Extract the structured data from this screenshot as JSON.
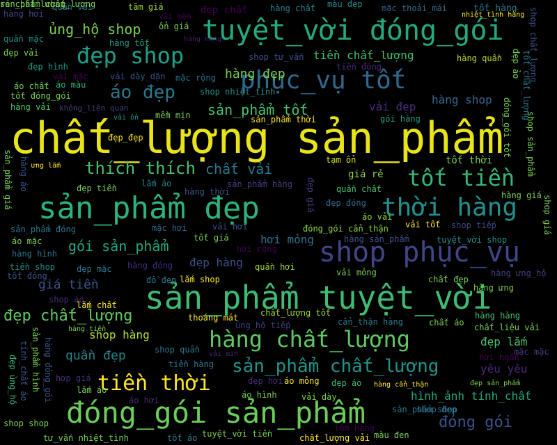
{
  "words": [
    {
      "text": "chất_lượng sản_phẩm",
      "color": "#e8e419"
    },
    {
      "text": "sản_phẩm tuyệt_vời",
      "color": "#3ebc73"
    },
    {
      "text": "đóng_gói sản_phẩm",
      "color": "#6ccd5a"
    },
    {
      "text": "sản_phẩm đẹp",
      "color": "#2db27d"
    },
    {
      "text": "tuyệt_vời đóng_gói",
      "color": "#24aa83"
    },
    {
      "text": "shop phục_vụ",
      "color": "#414487"
    },
    {
      "text": "phục_vụ tốt",
      "color": "#31688e"
    },
    {
      "text": "thời hàng",
      "color": "#21918c"
    },
    {
      "text": "hàng chất_lượng",
      "color": "#5ec962"
    },
    {
      "text": "đẹp shop",
      "color": "#1f9e89"
    },
    {
      "text": "tốt tiền",
      "color": "#35b779"
    },
    {
      "text": "tiền thời",
      "color": "#fde725"
    },
    {
      "text": "sản_phẩm chất_lượng",
      "color": "#1f958b"
    },
    {
      "text": "áo đẹp",
      "color": "#2a788e"
    },
    {
      "text": "thích thích",
      "color": "#48c16e"
    },
    {
      "text": "gói sản_phẩm",
      "color": "#22a884"
    },
    {
      "text": "đẹp chất_lượng",
      "color": "#5ec962"
    },
    {
      "text": "đóng gói",
      "color": "#3b528b"
    },
    {
      "text": "ủng_hộ shop",
      "color": "#7ad151"
    },
    {
      "text": "sản_phẩm tốt",
      "color": "#48c16e"
    },
    {
      "text": "chất vải",
      "color": "#2a788e"
    },
    {
      "text": "hàng đẹp",
      "color": "#7ad151"
    },
    {
      "text": "giá tiền",
      "color": "#3b528b"
    },
    {
      "text": "quần đẹp",
      "color": "#25848e"
    },
    {
      "text": "tiền chất_lượng",
      "color": "#44bf70"
    },
    {
      "text": "hàng shop",
      "color": "#31688e"
    },
    {
      "text": "shop hàng",
      "color": "#b5de2b"
    },
    {
      "text": "đẹp lắm",
      "color": "#4ac16d"
    },
    {
      "text": "đẹp hàng",
      "color": "#3b528b"
    },
    {
      "text": "hơi mỏng",
      "color": "#2c728e"
    },
    {
      "text": "vải đẹp",
      "color": "#472d7b"
    },
    {
      "text": "hình_ảnh tính_chất",
      "color": "#22a884"
    },
    {
      "text": "yêu yêu",
      "color": "#482878"
    },
    {
      "text": "giá rẻ",
      "color": "#93d741"
    },
    {
      "text": "tốt thời",
      "color": "#7ad151"
    },
    {
      "text": "tăm giá",
      "color": "#a0da39"
    },
    {
      "text": "quần vải",
      "color": "#2a788e"
    },
    {
      "text": "hàng hơi",
      "color": "#3e4989"
    },
    {
      "text": "đẹp chất",
      "color": "#440154"
    },
    {
      "text": "hàng chất",
      "color": "#26828e"
    },
    {
      "text": "màu đẹp",
      "color": "#25848e"
    },
    {
      "text": "mặc thoải_mái",
      "color": "#31688e"
    },
    {
      "text": "tốt hàng",
      "color": "#2a788e"
    },
    {
      "text": "vải mềm",
      "color": "#440154"
    },
    {
      "text": "ổn giá",
      "color": "#7ad151"
    },
    {
      "text": "nhiệt_tình hàng",
      "color": "#fde725"
    },
    {
      "text": "quần mặc",
      "color": "#21918c"
    },
    {
      "text": "hàng tốt",
      "color": "#1f9e89"
    },
    {
      "text": "hàng nóng",
      "color": "#481f70"
    },
    {
      "text": "đẹp vải",
      "color": "#7ad151"
    },
    {
      "text": "đẹp hình",
      "color": "#1f9e89"
    },
    {
      "text": "shop tư_vấn",
      "color": "#3b528b"
    },
    {
      "text": "hàng quần",
      "color": "#c2df23"
    },
    {
      "text": "tiền đóng",
      "color": "#472d7b"
    },
    {
      "text": "vải mặc",
      "color": "#440154"
    },
    {
      "text": "vải dày_dặn",
      "color": "#3b528b"
    },
    {
      "text": "mặc rộng",
      "color": "#2c728e"
    },
    {
      "text": "áo chất",
      "color": "#75d054"
    },
    {
      "text": "áo màu",
      "color": "#2db27d"
    },
    {
      "text": "tốt đóng_gói",
      "color": "#7ad151"
    },
    {
      "text": "shop nhiệt_tình",
      "color": "#21918c"
    },
    {
      "text": "hàng vải",
      "color": "#52c569"
    },
    {
      "text": "không_liên quan",
      "color": "#433e85"
    },
    {
      "text": "mềm mịn",
      "color": "#7ad151"
    },
    {
      "text": "vải ổn",
      "color": "#21918c"
    },
    {
      "text": "sản_phẩm thời",
      "color": "#fde725"
    },
    {
      "text": "gói hàng",
      "color": "#1f9e89"
    },
    {
      "text": "đẹp_đẹp",
      "color": "#fde725"
    },
    {
      "text": "ưng lắm",
      "color": "#fde725"
    },
    {
      "text": "tạm ổn",
      "color": "#dde318"
    },
    {
      "text": "đẹp tiền",
      "color": "#7ad151"
    },
    {
      "text": "lắm áo",
      "color": "#25848e"
    },
    {
      "text": "hàng thời",
      "color": "#3b528b"
    },
    {
      "text": "sản_phẩm hàng",
      "color": "#433e85"
    },
    {
      "text": "quần chất",
      "color": "#44bf70"
    },
    {
      "text": "đẹp đóng",
      "color": "#31688e"
    },
    {
      "text": "áo vải",
      "color": "#93d741"
    },
    {
      "text": "đóng_gói cẩn_thận",
      "color": "#8fd744"
    },
    {
      "text": "vải tốt",
      "color": "#fde725"
    },
    {
      "text": "shop tiếp",
      "color": "#3e4989"
    },
    {
      "text": "hàng giá",
      "color": "#7ad151"
    },
    {
      "text": "tốt giá",
      "color": "#7ad151"
    },
    {
      "text": "hàng sản_phẩm",
      "color": "#3b528b"
    },
    {
      "text": "tuyệt_vời shop",
      "color": "#21918c"
    },
    {
      "text": "sản_phẩm đóng",
      "color": "#2a788e"
    },
    {
      "text": "áo mặc",
      "color": "#7ad151"
    },
    {
      "text": "mặc hơi",
      "color": "#31688e"
    },
    {
      "text": "vải hơi",
      "color": "#3b528b"
    },
    {
      "text": "hơi rộng",
      "color": "#440154"
    },
    {
      "text": "hàng hình",
      "color": "#2c728e"
    },
    {
      "text": "tiền shop",
      "color": "#21918c"
    },
    {
      "text": "đẹp mặc",
      "color": "#2a788e"
    },
    {
      "text": "hàng đóng",
      "color": "#472d7b"
    },
    {
      "text": "quần hơi",
      "color": "#a0da39"
    },
    {
      "text": "vải mỏng",
      "color": "#7ad151"
    },
    {
      "text": "tốt đóng",
      "color": "#3b528b"
    },
    {
      "text": "đồ đẹp",
      "color": "#2a788e"
    },
    {
      "text": "lắm shop",
      "color": "#fde725"
    },
    {
      "text": "chất đẹp",
      "color": "#7ad151"
    },
    {
      "text": "hàng ưng_hộ",
      "color": "#433e85"
    },
    {
      "text": "shop áo",
      "color": "#472d7b"
    },
    {
      "text": "lắm chất",
      "color": "#fde725"
    },
    {
      "text": "chất_lượng tốt",
      "color": "#a0da39"
    },
    {
      "text": "hàng hàng",
      "color": "#44bf70"
    },
    {
      "text": "chất_liệu vải",
      "color": "#7ad151"
    },
    {
      "text": "thoáng mát",
      "color": "#fde725"
    },
    {
      "text": "cẩn_thận hàng",
      "color": "#2a788e"
    },
    {
      "text": "chất áo",
      "color": "#7ad151"
    },
    {
      "text": "ủng_hộ tiếp",
      "color": "#433e85"
    },
    {
      "text": "hàng tiền",
      "color": "#7ad151"
    },
    {
      "text": "shop quần",
      "color": "#2a788e"
    },
    {
      "text": "vải min",
      "color": "#472d7b"
    },
    {
      "text": "hơi ngắn",
      "color": "#440154"
    },
    {
      "text": "mặc mặc",
      "color": "#433e85"
    },
    {
      "text": "tiền hàng",
      "color": "#2a788e"
    },
    {
      "text": "hợp giá",
      "color": "#472d7b"
    },
    {
      "text": "đẹp hơi",
      "color": "#472d7b"
    },
    {
      "text": "áo mỏng",
      "color": "#fde725"
    },
    {
      "text": "đẹp áo",
      "color": "#35b779"
    },
    {
      "text": "hàng cẩn_thận",
      "color": "#fde725"
    },
    {
      "text": "đẹp sản_phẩm",
      "color": "#7ad151"
    },
    {
      "text": "áo hơi",
      "color": "#472d7b"
    },
    {
      "text": "áo hình",
      "color": "#7ad151"
    },
    {
      "text": "vải dày",
      "color": "#7ad151"
    },
    {
      "text": "shop đẹp",
      "color": "#31688e"
    },
    {
      "text": "sản_phẩm shop",
      "color": "#2a788e"
    },
    {
      "text": "shop shop",
      "color": "#7ad151"
    },
    {
      "text": "lấm hàng",
      "color": "#440154"
    },
    {
      "text": "tư_vấn nhiệt_tình",
      "color": "#7ad151"
    },
    {
      "text": "tốt áo",
      "color": "#2a788e"
    },
    {
      "text": "tuyệt_vời tiền",
      "color": "#7ad151"
    },
    {
      "text": "chất_lượng vải",
      "color": "#fde725"
    },
    {
      "text": "màu đen",
      "color": "#7ad151"
    },
    {
      "text": "hàng ưng",
      "color": "#7ad151"
    },
    {
      "text": "lắm áo",
      "color": "#7ad151"
    },
    {
      "text": "đẹp ủng_hộ",
      "color": "#35b779"
    },
    {
      "text": "tính_chất áo",
      "color": "#3b528b"
    },
    {
      "text": "sản_phẩm hình",
      "color": "#7ad151"
    },
    {
      "text": "sản_phẩm giá",
      "color": "#7ad151"
    },
    {
      "text": "hàng đóng_gói",
      "color": "#3b528b"
    },
    {
      "text": "hàng áo",
      "color": "#3b528b"
    },
    {
      "text": "đẹp giá",
      "color": "#433e85"
    },
    {
      "text": "đẹp ảo",
      "color": "#7ad151"
    },
    {
      "text": "shop chất_lượng",
      "color": "#3b528b"
    },
    {
      "text": "tốt chất_lượng",
      "color": "#2a788e"
    },
    {
      "text": "đóng_gói tốt",
      "color": "#7ad151"
    },
    {
      "text": "shop sản_phẩm",
      "color": "#7ad151"
    },
    {
      "text": "shop giá",
      "color": "#7ad151"
    },
    {
      "text": "sản_phẩm chất_lượng",
      "color": "#7ad151"
    },
    {
      "text": "rẻ chất_lượng",
      "color": "#7ad151"
    }
  ]
}
